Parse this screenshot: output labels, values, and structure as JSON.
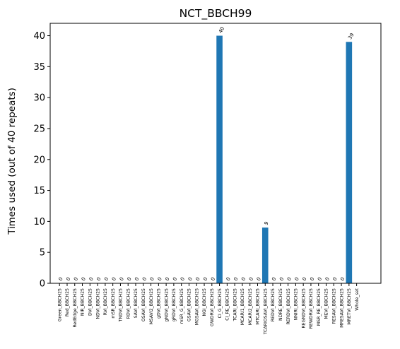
{
  "chart_data": {
    "type": "bar",
    "title": "NCT_BBCH99",
    "xlabel": "",
    "ylabel": "Times used (out of 40 repeats)",
    "ylim": [
      0,
      42
    ],
    "yticks": [
      0,
      5,
      10,
      15,
      20,
      25,
      30,
      35,
      40
    ],
    "grid": false,
    "bar_color": "#1f77b4",
    "categories": [
      "Green_BBCH25",
      "Red_BBCH25",
      "RedEdge_BBCH25",
      "NIR_BBCH25",
      "DVI_BBCH25",
      "NDVI_BBCH25",
      "RVI_BBCH25",
      "mSR_BBCH25",
      "TNDVI_BBCH25",
      "RDVI_BBCH25",
      "SAVI_BBCH25",
      "OSAVI_BBCH25",
      "MSAVI2_BBCH25",
      "gDVI_BBCH25",
      "gNDVI_BBCH25",
      "gRDVI_BBCH25",
      "mSR_G_BBCH25",
      "GSAVI_BBCH25",
      "MGSAVI_BBCH25",
      "NGI_BBCH25",
      "GWDRVI_BBCH25",
      "CI_G_BBCH25",
      "CI_RE_BBCH25",
      "TCARI_BBCH25",
      "MCARI1_BBCH25",
      "MCARI2_BBCH25",
      "MTCARI_BBCH25",
      "TCARIOSAVI_BBCH25",
      "REDVI_BBCH25",
      "NDRE_BBCH25",
      "RERDVI_BBCH25",
      "NNIRI_BBCH25",
      "REGNDVI_BBCH25",
      "REWDRVI_BBCH25",
      "MSR_RE_BBCH25",
      "MEVI_BBCH25",
      "RESAVI_BBCH25",
      "MRESAVI_BBCH25",
      "MRETVI_BBCH25",
      "Whole_set"
    ],
    "values": [
      0,
      0,
      0,
      0,
      0,
      0,
      0,
      0,
      0,
      0,
      0,
      0,
      0,
      0,
      0,
      0,
      0,
      0,
      0,
      0,
      0,
      40,
      0,
      0,
      0,
      0,
      0,
      9,
      0,
      0,
      0,
      0,
      0,
      0,
      0,
      0,
      0,
      0,
      39,
      null
    ],
    "data_labels": [
      "0",
      "0",
      "0",
      "0",
      "0",
      "0",
      "0",
      "0",
      "0",
      "0",
      "0",
      "0",
      "0",
      "0",
      "0",
      "0",
      "0",
      "0",
      "0",
      "0",
      "0",
      "40",
      "0",
      "0",
      "0",
      "0",
      "0",
      "9",
      "0",
      "0",
      "0",
      "0",
      "0",
      "0",
      "0",
      "0",
      "0",
      "0",
      "39",
      ""
    ]
  }
}
